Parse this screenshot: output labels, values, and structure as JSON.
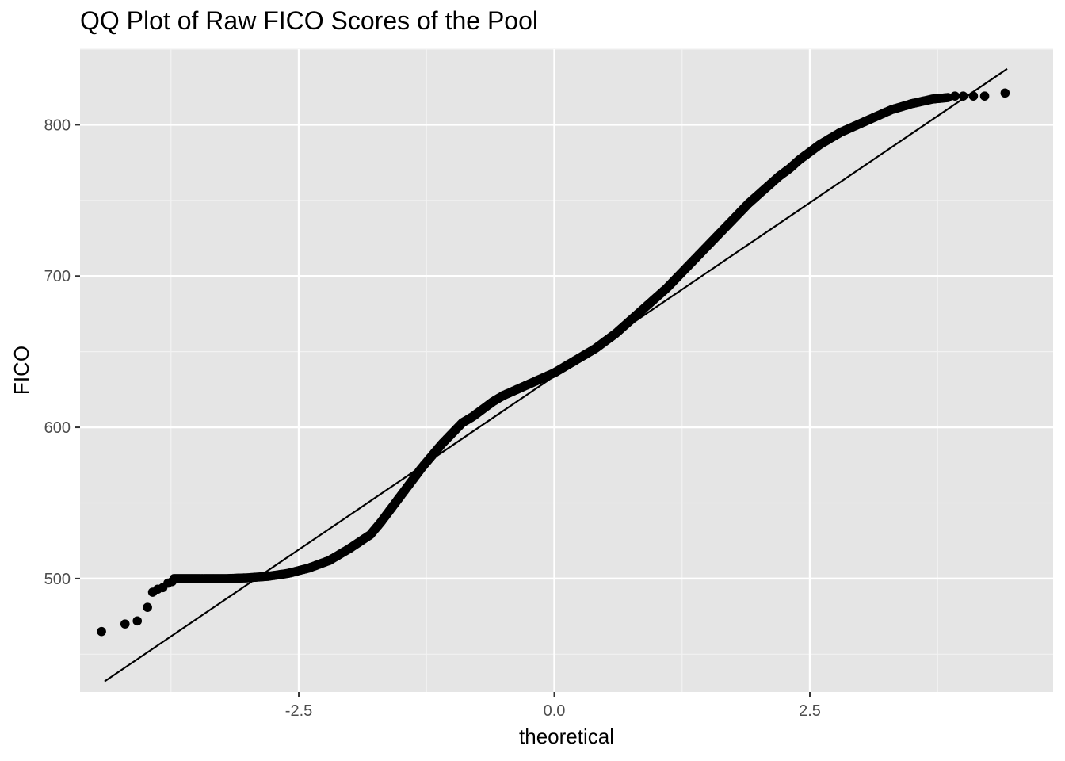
{
  "chart_data": {
    "type": "scatter",
    "title": "QQ Plot of Raw FICO Scores of the Pool",
    "xlabel": "theoretical",
    "ylabel": "FICO",
    "xlim": [
      -4.64,
      4.88
    ],
    "ylim": [
      425,
      850
    ],
    "x_ticks": [
      -2.5,
      0.0,
      2.5
    ],
    "x_tick_labels": [
      "-2.5",
      "0.0",
      "2.5"
    ],
    "y_ticks": [
      500,
      600,
      700,
      800
    ],
    "y_tick_labels": [
      "500",
      "600",
      "700",
      "800"
    ],
    "grid": true,
    "background_color": "#e5e5e5",
    "point_color": "#000000",
    "reference_line": {
      "x": [
        -4.4,
        4.43
      ],
      "y": [
        432,
        837
      ]
    },
    "series": [
      {
        "curve": [
          [
            -3.72,
            500
          ],
          [
            -3.5,
            500
          ],
          [
            -3.2,
            500
          ],
          [
            -3.0,
            500.5
          ],
          [
            -2.8,
            501.5
          ],
          [
            -2.6,
            503.5
          ],
          [
            -2.4,
            507
          ],
          [
            -2.2,
            512
          ],
          [
            -2.0,
            520
          ],
          [
            -1.8,
            529
          ],
          [
            -1.7,
            537
          ],
          [
            -1.6,
            546
          ],
          [
            -1.5,
            555
          ],
          [
            -1.4,
            564
          ],
          [
            -1.3,
            573
          ],
          [
            -1.2,
            581
          ],
          [
            -1.1,
            589
          ],
          [
            -1.0,
            596
          ],
          [
            -0.9,
            603
          ],
          [
            -0.8,
            607
          ],
          [
            -0.7,
            612
          ],
          [
            -0.6,
            617
          ],
          [
            -0.5,
            621
          ],
          [
            -0.4,
            624
          ],
          [
            -0.3,
            627
          ],
          [
            -0.2,
            630
          ],
          [
            -0.1,
            633
          ],
          [
            0.0,
            636
          ],
          [
            0.1,
            640
          ],
          [
            0.2,
            644
          ],
          [
            0.3,
            648
          ],
          [
            0.4,
            652
          ],
          [
            0.5,
            657
          ],
          [
            0.6,
            662
          ],
          [
            0.7,
            668
          ],
          [
            0.8,
            674
          ],
          [
            0.9,
            680
          ],
          [
            1.0,
            686
          ],
          [
            1.1,
            692
          ],
          [
            1.2,
            699
          ],
          [
            1.3,
            706
          ],
          [
            1.4,
            713
          ],
          [
            1.5,
            720
          ],
          [
            1.6,
            727
          ],
          [
            1.7,
            734
          ],
          [
            1.8,
            741
          ],
          [
            1.9,
            748
          ],
          [
            2.0,
            754
          ],
          [
            2.1,
            760
          ],
          [
            2.2,
            766
          ],
          [
            2.3,
            771
          ],
          [
            2.4,
            777
          ],
          [
            2.5,
            782
          ],
          [
            2.6,
            787
          ],
          [
            2.7,
            791
          ],
          [
            2.8,
            795
          ],
          [
            2.9,
            798
          ],
          [
            3.0,
            801
          ],
          [
            3.1,
            804
          ],
          [
            3.2,
            807
          ],
          [
            3.3,
            810
          ],
          [
            3.4,
            812
          ],
          [
            3.5,
            814
          ],
          [
            3.6,
            815.5
          ],
          [
            3.7,
            817
          ],
          [
            3.85,
            818
          ]
        ],
        "tail_points": [
          [
            -4.43,
            465
          ],
          [
            -4.2,
            470
          ],
          [
            -4.08,
            472
          ],
          [
            -3.98,
            481
          ],
          [
            -3.93,
            491
          ],
          [
            -3.88,
            493
          ],
          [
            -3.83,
            494
          ],
          [
            -3.78,
            497
          ],
          [
            -3.74,
            498
          ],
          [
            3.92,
            819
          ],
          [
            4.0,
            819
          ],
          [
            4.1,
            819
          ],
          [
            4.21,
            819
          ],
          [
            4.41,
            821
          ]
        ]
      }
    ]
  }
}
